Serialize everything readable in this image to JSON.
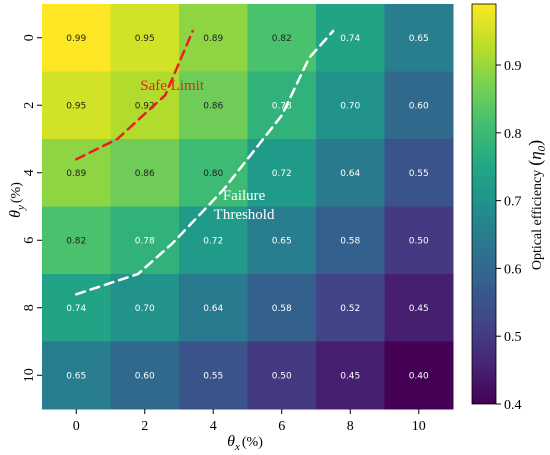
{
  "chart_data": {
    "type": "heatmap",
    "x_tick_labels": [
      "0",
      "2",
      "4",
      "6",
      "8",
      "10"
    ],
    "y_tick_labels": [
      "0",
      "2",
      "4",
      "6",
      "8",
      "10"
    ],
    "values": [
      [
        0.99,
        0.95,
        0.89,
        0.82,
        0.74,
        0.65
      ],
      [
        0.95,
        0.92,
        0.86,
        0.78,
        0.7,
        0.6
      ],
      [
        0.89,
        0.86,
        0.8,
        0.72,
        0.64,
        0.55
      ],
      [
        0.82,
        0.78,
        0.72,
        0.65,
        0.58,
        0.5
      ],
      [
        0.74,
        0.7,
        0.64,
        0.58,
        0.52,
        0.45
      ],
      [
        0.65,
        0.6,
        0.55,
        0.5,
        0.45,
        0.4
      ]
    ],
    "cell_labels": [
      [
        "0.99",
        "0.95",
        "0.89",
        "0.82",
        "0.74",
        "0.65"
      ],
      [
        "0.95",
        "0.92",
        "0.86",
        "0.78",
        "0.70",
        "0.60"
      ],
      [
        "0.89",
        "0.86",
        "0.80",
        "0.72",
        "0.64",
        "0.55"
      ],
      [
        "0.82",
        "0.78",
        "0.72",
        "0.65",
        "0.58",
        "0.50"
      ],
      [
        "0.74",
        "0.70",
        "0.64",
        "0.58",
        "0.52",
        "0.45"
      ],
      [
        "0.65",
        "0.60",
        "0.55",
        "0.50",
        "0.45",
        "0.40"
      ]
    ],
    "xlabel": {
      "symbol": "θ",
      "sub": "x",
      "unit": "(%)"
    },
    "ylabel": {
      "symbol": "θ",
      "sub": "y",
      "unit": "(%)"
    },
    "colorbar": {
      "label_text": "Optical efficiency",
      "label_symbol": "η",
      "label_sub": "0",
      "ticks": [
        "0.4",
        "0.5",
        "0.6",
        "0.7",
        "0.8",
        "0.9"
      ],
      "range": [
        0.4,
        0.99
      ],
      "colormap": "viridis"
    },
    "curves": [
      {
        "label": "Safe Limit",
        "color": "#e8201f",
        "style": "dashed",
        "points": [
          [
            0,
            3.6
          ],
          [
            1.2,
            3.0
          ],
          [
            2.6,
            1.7
          ],
          [
            3.4,
            -0.2
          ]
        ]
      },
      {
        "label": "Failure Threshold",
        "label_lines": [
          "Failure",
          "Threshold"
        ],
        "color": "#ffffff",
        "style": "dashed",
        "points": [
          [
            0,
            7.6
          ],
          [
            1.8,
            7.0
          ],
          [
            2.8,
            6.1
          ],
          [
            4.3,
            4.5
          ],
          [
            6.0,
            2.3
          ],
          [
            6.8,
            0.6
          ],
          [
            7.5,
            -0.2
          ]
        ]
      }
    ],
    "curve_label_positions": [
      [
        2.8,
        1.55
      ],
      [
        4.9,
        4.8
      ]
    ],
    "grid": false,
    "legend": "none"
  }
}
